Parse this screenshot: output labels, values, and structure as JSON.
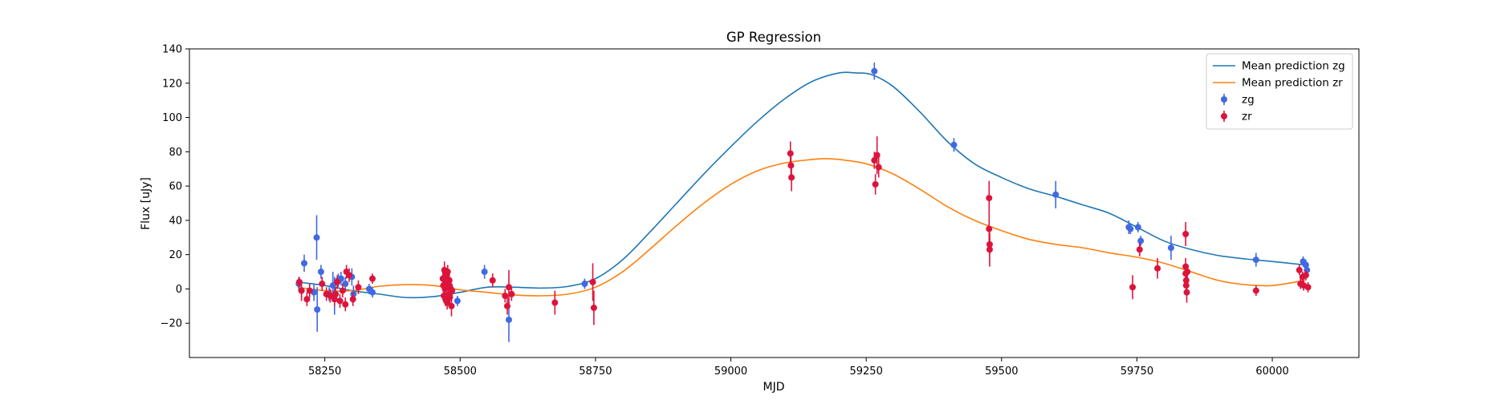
{
  "chart_data": {
    "type": "scatter",
    "title": "GP Regression",
    "xlabel": "MJD",
    "ylabel": "Flux [uJy]",
    "xlim": [
      58000,
      60160
    ],
    "ylim": [
      -40,
      140
    ],
    "x_ticks": [
      58250,
      58500,
      58750,
      59000,
      59250,
      59500,
      59750,
      60000
    ],
    "x_tick_labels": [
      "58250",
      "58500",
      "58750",
      "59000",
      "59250",
      "59500",
      "59750",
      "60000"
    ],
    "y_ticks": [
      -20,
      0,
      20,
      40,
      60,
      80,
      100,
      120,
      140
    ],
    "y_tick_labels": [
      "−20",
      "0",
      "20",
      "40",
      "60",
      "80",
      "100",
      "120",
      "140"
    ],
    "grid": false,
    "legend_position": "top-right",
    "legend": [
      {
        "label": "Mean prediction zg",
        "kind": "line",
        "color": "#1f77b4"
      },
      {
        "label": "Mean prediction zr",
        "kind": "line",
        "color": "#ff7f0e"
      },
      {
        "label": "zg",
        "kind": "errorbar",
        "color": "#4169e1"
      },
      {
        "label": "zr",
        "kind": "errorbar",
        "color": "#dc143c"
      }
    ],
    "lines": [
      {
        "name": "Mean prediction zg",
        "color": "#1f77b4",
        "x": [
          58200,
          58250,
          58300,
          58350,
          58400,
          58450,
          58500,
          58550,
          58600,
          58650,
          58700,
          58750,
          58800,
          58850,
          58900,
          58950,
          59000,
          59050,
          59100,
          59150,
          59200,
          59230,
          59260,
          59300,
          59350,
          59400,
          59450,
          59500,
          59550,
          59600,
          59650,
          59700,
          59750,
          59800,
          59850,
          59900,
          59950,
          60000,
          60060
        ],
        "y": [
          4,
          2,
          -1,
          -3,
          -5,
          -4.5,
          -2,
          1,
          1,
          0.5,
          1.5,
          6,
          17,
          33,
          50,
          67,
          83,
          98,
          111,
          121,
          126,
          126,
          125,
          118,
          103,
          86,
          73,
          65,
          58.5,
          54,
          49,
          44,
          36,
          28,
          23,
          19.5,
          17.5,
          16,
          14
        ]
      },
      {
        "name": "Mean prediction zr",
        "color": "#ff7f0e",
        "x": [
          58200,
          58250,
          58300,
          58350,
          58400,
          58450,
          58500,
          58550,
          58600,
          58650,
          58700,
          58750,
          58800,
          58850,
          58900,
          58950,
          59000,
          59050,
          59100,
          59150,
          59175,
          59200,
          59250,
          59300,
          59350,
          59400,
          59450,
          59500,
          59550,
          59600,
          59650,
          59700,
          59750,
          59800,
          59850,
          59900,
          59950,
          60000,
          60060
        ],
        "y": [
          1,
          -1,
          -1,
          1.5,
          2.5,
          2,
          -0.5,
          -2,
          -3.5,
          -4,
          -3,
          1,
          10,
          23,
          37,
          50,
          61,
          69,
          73.5,
          75.5,
          76,
          75.5,
          73,
          67,
          58,
          48,
          40,
          34,
          29,
          26,
          24,
          21,
          18.5,
          15,
          10,
          5,
          2.5,
          2,
          5
        ]
      }
    ],
    "series": [
      {
        "name": "zg",
        "color": "#4169e1",
        "points": [
          {
            "x": 58202,
            "y": 3,
            "err": 4
          },
          {
            "x": 58207,
            "y": -1,
            "err": 4
          },
          {
            "x": 58212,
            "y": 15,
            "err": 5
          },
          {
            "x": 58230,
            "y": -2,
            "err": 5
          },
          {
            "x": 58235,
            "y": 30,
            "err": 13
          },
          {
            "x": 58236,
            "y": -12,
            "err": 13
          },
          {
            "x": 58243,
            "y": 10,
            "err": 4
          },
          {
            "x": 58258,
            "y": -3,
            "err": 4
          },
          {
            "x": 58265,
            "y": 2,
            "err": 8
          },
          {
            "x": 58268,
            "y": -4,
            "err": 11
          },
          {
            "x": 58275,
            "y": 5,
            "err": 4
          },
          {
            "x": 58280,
            "y": 6,
            "err": 4
          },
          {
            "x": 58288,
            "y": 3,
            "err": 4
          },
          {
            "x": 58300,
            "y": 7,
            "err": 5
          },
          {
            "x": 58303,
            "y": -3,
            "err": 5
          },
          {
            "x": 58332,
            "y": 0,
            "err": 3
          },
          {
            "x": 58338,
            "y": -2,
            "err": 3
          },
          {
            "x": 58495,
            "y": -7,
            "err": 3
          },
          {
            "x": 58545,
            "y": 10,
            "err": 4
          },
          {
            "x": 58590,
            "y": -18,
            "err": 13
          },
          {
            "x": 58730,
            "y": 3,
            "err": 3
          },
          {
            "x": 59265,
            "y": 127,
            "err": 5
          },
          {
            "x": 59412,
            "y": 84,
            "err": 4
          },
          {
            "x": 59600,
            "y": 55,
            "err": 8
          },
          {
            "x": 59735,
            "y": 36,
            "err": 4
          },
          {
            "x": 59738,
            "y": 35,
            "err": 3
          },
          {
            "x": 59752,
            "y": 36,
            "err": 3
          },
          {
            "x": 59757,
            "y": 28,
            "err": 3
          },
          {
            "x": 59813,
            "y": 24,
            "err": 7
          },
          {
            "x": 59970,
            "y": 17,
            "err": 4
          },
          {
            "x": 60057,
            "y": 16,
            "err": 3
          },
          {
            "x": 60062,
            "y": 14,
            "err": 3
          },
          {
            "x": 60064,
            "y": 11,
            "err": 3
          }
        ]
      },
      {
        "name": "zr",
        "color": "#dc143c",
        "points": [
          {
            "x": 58203,
            "y": 4,
            "err": 3
          },
          {
            "x": 58207,
            "y": -1,
            "err": 6
          },
          {
            "x": 58217,
            "y": -6,
            "err": 4
          },
          {
            "x": 58222,
            "y": -1,
            "err": 4
          },
          {
            "x": 58245,
            "y": 3,
            "err": 4
          },
          {
            "x": 58253,
            "y": -3,
            "err": 4
          },
          {
            "x": 58260,
            "y": -4,
            "err": 4
          },
          {
            "x": 58268,
            "y": -6,
            "err": 4
          },
          {
            "x": 58270,
            "y": -3,
            "err": 4
          },
          {
            "x": 58273,
            "y": 4,
            "err": 4
          },
          {
            "x": 58278,
            "y": -7,
            "err": 4
          },
          {
            "x": 58283,
            "y": -1,
            "err": 4
          },
          {
            "x": 58288,
            "y": -9,
            "err": 4
          },
          {
            "x": 58290,
            "y": 10,
            "err": 4
          },
          {
            "x": 58295,
            "y": 8,
            "err": 4
          },
          {
            "x": 58302,
            "y": -6,
            "err": 4
          },
          {
            "x": 58312,
            "y": 1,
            "err": 4
          },
          {
            "x": 58338,
            "y": 6,
            "err": 3
          },
          {
            "x": 58468,
            "y": 6,
            "err": 4
          },
          {
            "x": 58469,
            "y": 2,
            "err": 4
          },
          {
            "x": 58470,
            "y": -4,
            "err": 4
          },
          {
            "x": 58471,
            "y": 11,
            "err": 5
          },
          {
            "x": 58472,
            "y": 0,
            "err": 4
          },
          {
            "x": 58473,
            "y": -6,
            "err": 4
          },
          {
            "x": 58474,
            "y": 8,
            "err": 4
          },
          {
            "x": 58475,
            "y": 4,
            "err": 4
          },
          {
            "x": 58476,
            "y": -8,
            "err": 4
          },
          {
            "x": 58477,
            "y": 10,
            "err": 4
          },
          {
            "x": 58478,
            "y": 2,
            "err": 4
          },
          {
            "x": 58479,
            "y": -3,
            "err": 4
          },
          {
            "x": 58480,
            "y": 5,
            "err": 4
          },
          {
            "x": 58481,
            "y": -5,
            "err": 4
          },
          {
            "x": 58483,
            "y": 0,
            "err": 4
          },
          {
            "x": 58484,
            "y": -10,
            "err": 6
          },
          {
            "x": 58485,
            "y": -1,
            "err": 4
          },
          {
            "x": 58560,
            "y": 5,
            "err": 4
          },
          {
            "x": 58583,
            "y": -4,
            "err": 4
          },
          {
            "x": 58587,
            "y": -10,
            "err": 5
          },
          {
            "x": 58590,
            "y": 1,
            "err": 10
          },
          {
            "x": 58595,
            "y": -3,
            "err": 4
          },
          {
            "x": 58675,
            "y": -8,
            "err": 7
          },
          {
            "x": 58745,
            "y": 4,
            "err": 11
          },
          {
            "x": 58747,
            "y": -11,
            "err": 10
          },
          {
            "x": 59110,
            "y": 79,
            "err": 7
          },
          {
            "x": 59111,
            "y": 72,
            "err": 7
          },
          {
            "x": 59112,
            "y": 65,
            "err": 8
          },
          {
            "x": 59265,
            "y": 75,
            "err": 5
          },
          {
            "x": 59267,
            "y": 61,
            "err": 6
          },
          {
            "x": 59270,
            "y": 78,
            "err": 11
          },
          {
            "x": 59273,
            "y": 71,
            "err": 6
          },
          {
            "x": 59477,
            "y": 53,
            "err": 10
          },
          {
            "x": 59477,
            "y": 35,
            "err": 8
          },
          {
            "x": 59478,
            "y": 26,
            "err": 6
          },
          {
            "x": 59478,
            "y": 23,
            "err": 10
          },
          {
            "x": 59742,
            "y": 1,
            "err": 7
          },
          {
            "x": 59755,
            "y": 23,
            "err": 4
          },
          {
            "x": 59788,
            "y": 12,
            "err": 6
          },
          {
            "x": 59840,
            "y": 32,
            "err": 7
          },
          {
            "x": 59840,
            "y": 13,
            "err": 5
          },
          {
            "x": 59840,
            "y": 9,
            "err": 4
          },
          {
            "x": 59841,
            "y": 5,
            "err": 4
          },
          {
            "x": 59841,
            "y": 2,
            "err": 4
          },
          {
            "x": 59842,
            "y": -2,
            "err": 6
          },
          {
            "x": 59843,
            "y": 10,
            "err": 4
          },
          {
            "x": 59970,
            "y": -1,
            "err": 3
          },
          {
            "x": 60050,
            "y": 11,
            "err": 3
          },
          {
            "x": 60052,
            "y": 3,
            "err": 3
          },
          {
            "x": 60056,
            "y": 7,
            "err": 3
          },
          {
            "x": 60058,
            "y": 2,
            "err": 3
          },
          {
            "x": 60062,
            "y": 8,
            "err": 3
          },
          {
            "x": 60066,
            "y": 1,
            "err": 3
          }
        ]
      }
    ]
  }
}
